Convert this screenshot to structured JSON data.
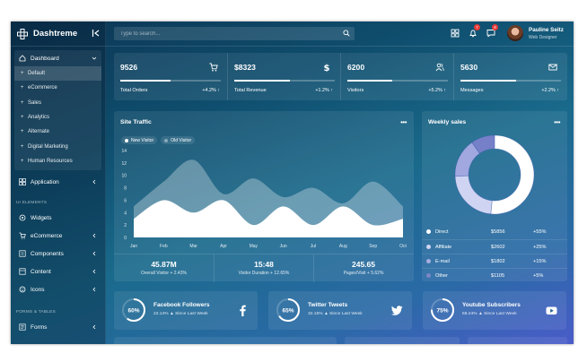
{
  "app": {
    "name": "Dashtreme"
  },
  "header": {
    "search_placeholder": "Type to search...",
    "notifications_count": "7",
    "messages_count": "8",
    "user_name": "Pauline Seitz",
    "user_role": "Web Designer"
  },
  "sidebar": {
    "dashboard": {
      "label": "Dashboard",
      "items": [
        {
          "label": "Default"
        },
        {
          "label": "eCommerce"
        },
        {
          "label": "Sales"
        },
        {
          "label": "Analytics"
        },
        {
          "label": "Alternate"
        },
        {
          "label": "Digital Marketing"
        },
        {
          "label": "Human Resources"
        }
      ]
    },
    "application_label": "Application",
    "ui_section": "UI ELEMENTS",
    "ui_items": [
      {
        "label": "Widgets",
        "icon": "widgets-icon"
      },
      {
        "label": "eCommerce",
        "icon": "cart-icon"
      },
      {
        "label": "Components",
        "icon": "components-icon"
      },
      {
        "label": "Content",
        "icon": "content-icon"
      },
      {
        "label": "Icons",
        "icon": "icons-icon"
      }
    ],
    "forms_section": "FORMS & TABLES",
    "forms_label": "Forms"
  },
  "stats": [
    {
      "value": "9526",
      "label": "Total Orders",
      "change": "+4.2%",
      "progress": 0.5,
      "icon": "cart-icon"
    },
    {
      "value": "$8323",
      "label": "Total Revenue",
      "change": "+1.2%",
      "progress": 0.55,
      "icon": "dollar-icon"
    },
    {
      "value": "6200",
      "label": "Visitors",
      "change": "+5.2%",
      "progress": 0.45,
      "icon": "users-icon"
    },
    {
      "value": "5630",
      "label": "Messages",
      "change": "+2.2%",
      "progress": 0.55,
      "icon": "mail-icon"
    }
  ],
  "traffic": {
    "title": "Site Traffic",
    "summary": [
      {
        "value": "45.87M",
        "label": "Overall Visitor",
        "change": "+ 2.43%"
      },
      {
        "value": "15:48",
        "label": "Visitor Duration",
        "change": "+ 12.65%"
      },
      {
        "value": "245.65",
        "label": "Pages/Visit",
        "change": "+ 5.62%"
      }
    ]
  },
  "chart_data": {
    "type": "area",
    "title": "Site Traffic",
    "categories": [
      "Jan",
      "Feb",
      "Mar",
      "Apr",
      "May",
      "Jun",
      "Jul",
      "Aug",
      "Sep",
      "Oct"
    ],
    "series": [
      {
        "name": "New Visitor",
        "values": [
          3,
          6,
          4,
          6,
          2,
          5,
          2,
          5,
          2,
          3
        ],
        "color": "#ffffff"
      },
      {
        "name": "Old Visitor",
        "values": [
          5,
          9,
          12.5,
          7,
          9.5,
          6.5,
          8,
          5.5,
          9,
          5
        ],
        "color": "rgba(255,255,255,0.3)"
      }
    ],
    "ylim": [
      0,
      14
    ],
    "yticks": [
      0,
      2,
      4,
      6,
      8,
      10,
      12,
      14
    ],
    "legend_position": "top-left",
    "grid": false
  },
  "weekly": {
    "title": "Weekly sales",
    "chart_data": {
      "type": "pie",
      "categories": [
        "Direct",
        "Affiliate",
        "E-mail",
        "Other"
      ],
      "values": [
        5856,
        2602,
        1802,
        1105
      ],
      "colors": [
        "#ffffff",
        "#cfd4f2",
        "#a1a8e0",
        "#7580c9"
      ]
    },
    "rows": [
      {
        "name": "Direct",
        "amount": "$5856",
        "pct": "+55%",
        "color": "#ffffff"
      },
      {
        "name": "Affiliate",
        "amount": "$2602",
        "pct": "+25%",
        "color": "#d0d5f0"
      },
      {
        "name": "E-mail",
        "amount": "$1802",
        "pct": "+15%",
        "color": "#a7aee0"
      },
      {
        "name": "Other",
        "amount": "$1105",
        "pct": "+5%",
        "color": "#7d86c6"
      }
    ]
  },
  "social": [
    {
      "pct": "60%",
      "fraction": 0.6,
      "title": "Facebook Followers",
      "sub": "22.14% ▲ Since Last Week",
      "icon": "facebook-icon"
    },
    {
      "pct": "65%",
      "fraction": 0.65,
      "title": "Twitter Tweets",
      "sub": "32.15% ▲ Since Last Week",
      "icon": "twitter-icon"
    },
    {
      "pct": "75%",
      "fraction": 0.75,
      "title": "Youtube Subscribers",
      "sub": "58.24% ▲ Since Last Week",
      "icon": "youtube-icon"
    }
  ]
}
